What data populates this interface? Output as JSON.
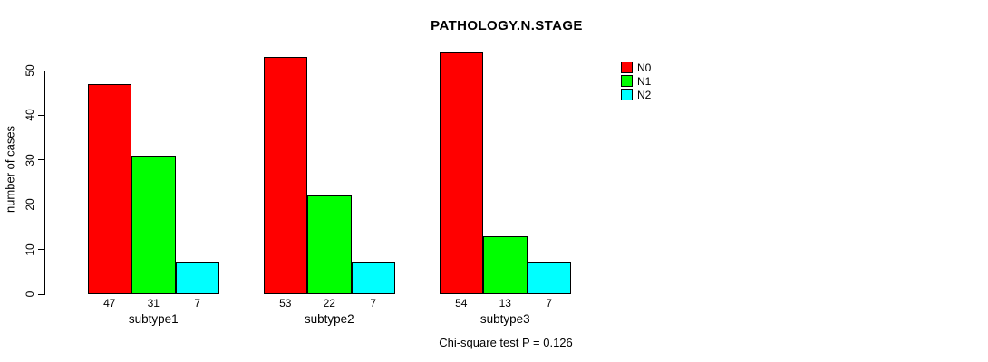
{
  "chart_data": {
    "type": "bar",
    "title": "PATHOLOGY.N.STAGE",
    "ylabel": "number of cases",
    "xlabel": "",
    "footnote": "Chi-square test P = 0.126",
    "categories": [
      "subtype1",
      "subtype2",
      "subtype3"
    ],
    "series": [
      {
        "name": "N0",
        "color": "#FF0000",
        "values": [
          47,
          53,
          54
        ]
      },
      {
        "name": "N1",
        "color": "#00FF00",
        "values": [
          31,
          22,
          13
        ]
      },
      {
        "name": "N2",
        "color": "#00FFFF",
        "values": [
          7,
          7,
          7
        ]
      }
    ],
    "bar_value_labels": [
      [
        47,
        31,
        7
      ],
      [
        53,
        22,
        7
      ],
      [
        54,
        13,
        7
      ]
    ],
    "yticks": [
      0,
      10,
      20,
      30,
      40,
      50
    ],
    "ylim": [
      0,
      50
    ],
    "grid": false,
    "legend_position": "right-outside",
    "background": "#FFFFFF",
    "axis_color": "#000000"
  }
}
